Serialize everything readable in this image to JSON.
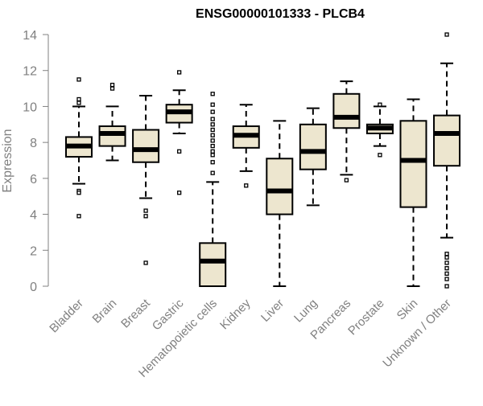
{
  "chart_data": {
    "type": "box",
    "title": "ENSG00000101333 - PLCB4",
    "xlabel": "",
    "ylabel": "Expression",
    "ylim": [
      0,
      14
    ],
    "yticks": [
      0,
      2,
      4,
      6,
      8,
      10,
      12,
      14
    ],
    "grid": false,
    "colors": {
      "box_fill": "#ede6cf",
      "stroke": "#000000",
      "median": "#000000",
      "axis": "#808080"
    },
    "categories": [
      "Bladder",
      "Brain",
      "Breast",
      "Gastric",
      "Hematopoietic cells",
      "Kidney",
      "Liver",
      "Lung",
      "Pancreas",
      "Prostate",
      "Skin",
      "Unknown / Other"
    ],
    "boxes": [
      {
        "category": "Bladder",
        "whisker_low": 5.7,
        "q1": 7.2,
        "median": 7.8,
        "q3": 8.3,
        "whisker_high": 10.0,
        "outliers": [
          11.5,
          10.4,
          10.2,
          5.3,
          5.2,
          3.9
        ]
      },
      {
        "category": "Brain",
        "whisker_low": 7.0,
        "q1": 7.8,
        "median": 8.5,
        "q3": 8.9,
        "whisker_high": 10.0,
        "outliers": [
          11.2,
          11.0
        ]
      },
      {
        "category": "Breast",
        "whisker_low": 4.9,
        "q1": 6.9,
        "median": 7.6,
        "q3": 8.7,
        "whisker_high": 10.6,
        "outliers": [
          4.2,
          3.9,
          1.3
        ]
      },
      {
        "category": "Gastric",
        "whisker_low": 8.5,
        "q1": 9.1,
        "median": 9.7,
        "q3": 10.1,
        "whisker_high": 10.9,
        "outliers": [
          11.9,
          7.5,
          5.2
        ]
      },
      {
        "category": "Hematopoietic cells",
        "whisker_low": 0.0,
        "q1": 0.0,
        "median": 1.4,
        "q3": 2.4,
        "whisker_high": 5.8,
        "outliers": [
          10.7,
          10.1,
          9.7,
          9.3,
          9.0,
          8.7,
          8.4,
          8.1,
          7.8,
          7.5,
          7.3,
          6.9,
          6.3
        ]
      },
      {
        "category": "Kidney",
        "whisker_low": 6.4,
        "q1": 7.7,
        "median": 8.4,
        "q3": 8.9,
        "whisker_high": 10.1,
        "outliers": [
          5.6
        ]
      },
      {
        "category": "Liver",
        "whisker_low": 0.0,
        "q1": 4.0,
        "median": 5.3,
        "q3": 7.1,
        "whisker_high": 9.2,
        "outliers": []
      },
      {
        "category": "Lung",
        "whisker_low": 4.5,
        "q1": 6.5,
        "median": 7.5,
        "q3": 9.0,
        "whisker_high": 9.9,
        "outliers": []
      },
      {
        "category": "Pancreas",
        "whisker_low": 6.2,
        "q1": 8.8,
        "median": 9.4,
        "q3": 10.7,
        "whisker_high": 11.4,
        "outliers": [
          5.9
        ]
      },
      {
        "category": "Prostate",
        "whisker_low": 7.8,
        "q1": 8.5,
        "median": 8.8,
        "q3": 9.0,
        "whisker_high": 10.0,
        "outliers": [
          10.1,
          7.3
        ]
      },
      {
        "category": "Skin",
        "whisker_low": 0.0,
        "q1": 4.4,
        "median": 7.0,
        "q3": 9.2,
        "whisker_high": 10.4,
        "outliers": []
      },
      {
        "category": "Unknown / Other",
        "whisker_low": 2.7,
        "q1": 6.7,
        "median": 8.5,
        "q3": 9.5,
        "whisker_high": 12.4,
        "outliers": [
          14.0,
          1.8,
          1.6,
          1.3,
          1.0,
          0.7,
          0.4,
          0.0
        ]
      }
    ]
  }
}
